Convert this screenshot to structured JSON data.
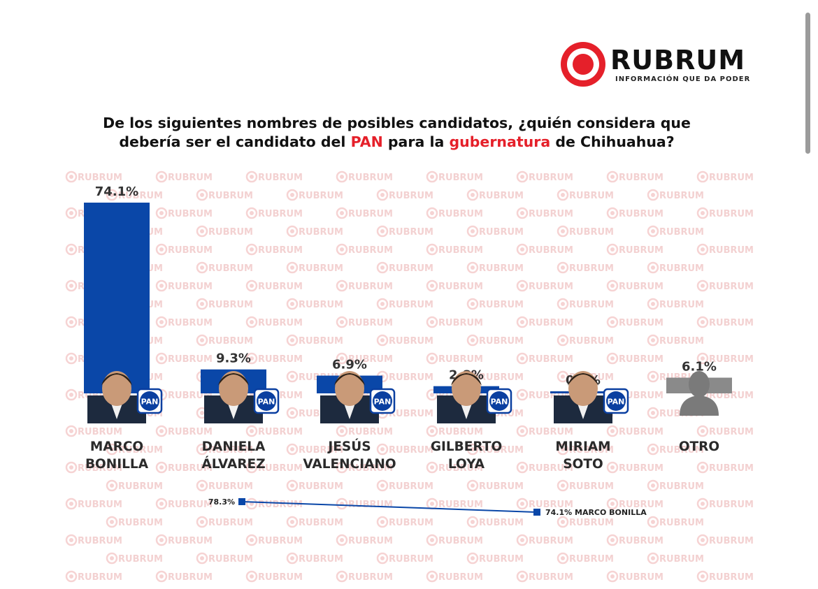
{
  "brand": {
    "name": "RUBRUM",
    "tagline": "INFORMACIÓN QUE DA PODER",
    "accent": "#e5202a",
    "watermark_text": "RUBRUM"
  },
  "question": {
    "part1": "De los siguientes nombres de posibles candidatos, ¿quién considera que",
    "part2": "debería ser el candidato del ",
    "highlight1": "PAN",
    "part3": " para la ",
    "highlight2": "gubernatura",
    "part4": " de Chihuahua?"
  },
  "colors": {
    "bar": "#0a47a8",
    "other_bar": "#8a8a8a",
    "pan_badge": "#0a3fa0",
    "label": "#2a2a2a",
    "trend_line": "#0a47a8"
  },
  "chart_data": {
    "type": "bar",
    "title": "",
    "xlabel": "",
    "ylabel": "",
    "ylim": [
      0,
      80
    ],
    "grid": false,
    "legend": "none",
    "categories": [
      [
        "MARCO",
        "BONILLA"
      ],
      [
        "DANIELA",
        "ÁLVAREZ"
      ],
      [
        "JESÚS",
        "VALENCIANO"
      ],
      [
        "GILBERTO",
        "LOYA"
      ],
      [
        "MIRIAM",
        "SOTO"
      ],
      [
        "OTRO"
      ]
    ],
    "values": [
      74.1,
      9.3,
      6.9,
      2.8,
      0.8,
      6.1
    ],
    "value_labels": [
      "74.1%",
      "9.3%",
      "6.9%",
      "2.8%",
      "0.8%",
      "6.1%"
    ],
    "party": [
      "PAN",
      "PAN",
      "PAN",
      "PAN",
      "PAN",
      ""
    ],
    "trend": {
      "type": "line",
      "points": [
        {
          "value": 78.3,
          "label": "78.3%"
        },
        {
          "value": 74.1,
          "label": "74.1%",
          "name": "MARCO BONILLA"
        }
      ]
    }
  }
}
